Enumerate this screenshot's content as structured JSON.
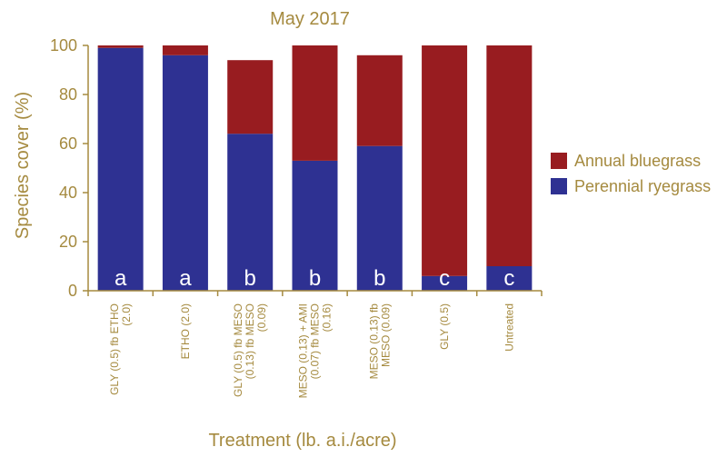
{
  "chart_data": {
    "type": "bar",
    "stacked": true,
    "title": "May 2017",
    "xlabel": "Treatment (lb. a.i./acre)",
    "ylabel": "Species cover (%)",
    "ylim": [
      0,
      100
    ],
    "yticks": [
      0,
      20,
      40,
      60,
      80,
      100
    ],
    "grid": false,
    "legend_position": "right",
    "categories": [
      [
        "GLY (0.5) fb ETHO",
        "(2.0)"
      ],
      [
        "ETHO (2.0)"
      ],
      [
        "GLY (0.5) fb MESO",
        "(0.13) fb MESO",
        "(0.09)"
      ],
      [
        "MESO (0.13) + AMI",
        "(0.07) fb MESO",
        "(0.16)"
      ],
      [
        "MESO (0.13) fb",
        "MESO (0.09)"
      ],
      [
        "GLY (0.5)"
      ],
      [
        "Untreated"
      ]
    ],
    "series": [
      {
        "name": "Perennial ryegrass",
        "color": "#2e3192",
        "values": [
          99,
          96,
          64,
          53,
          59,
          6,
          10
        ]
      },
      {
        "name": "Annual bluegrass",
        "color": "#981c20",
        "values": [
          1,
          4,
          30,
          47,
          37,
          94,
          90
        ]
      }
    ],
    "bar_letters": [
      "a",
      "a",
      "b",
      "b",
      "b",
      "c",
      "c"
    ],
    "legend_order": [
      "Annual bluegrass",
      "Perennial ryegrass"
    ],
    "text_color": "#a58a3f",
    "axis_color": "#a58a3f"
  }
}
